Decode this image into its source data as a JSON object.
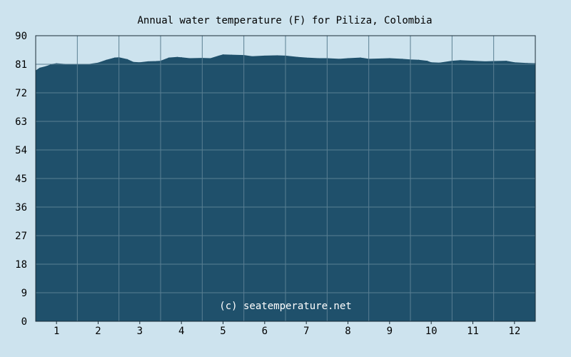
{
  "chart_data": {
    "type": "area",
    "title": "Annual water temperature (F) for Piliza, Colombia",
    "watermark": "(c) seatemperature.net",
    "xlabel": "",
    "ylabel": "",
    "ylim": [
      0,
      90
    ],
    "xlim": [
      0.5,
      12.5
    ],
    "y_ticks": [
      "0",
      "9",
      "18",
      "27",
      "36",
      "45",
      "54",
      "63",
      "72",
      "81",
      "90"
    ],
    "x_tick_labels": [
      "1",
      "2",
      "3",
      "4",
      "5",
      "6",
      "7",
      "8",
      "9",
      "10",
      "11",
      "12"
    ],
    "grid": true,
    "colors": {
      "background": "#cde3ee",
      "fill": "#1f506b",
      "grid": "#5a7f93",
      "axis": "#1a2d38"
    },
    "series": [
      {
        "x": [
          0.5,
          0.6,
          0.75,
          0.9,
          1.0,
          1.2,
          1.5,
          1.8,
          2.0,
          2.2,
          2.4,
          2.5,
          2.7,
          2.85,
          3.0,
          3.2,
          3.4,
          3.5,
          3.7,
          3.9,
          4.0,
          4.2,
          4.5,
          4.7,
          4.9,
          5.0,
          5.2,
          5.5,
          5.7,
          6.0,
          6.3,
          6.5,
          6.8,
          7.0,
          7.3,
          7.5,
          7.8,
          8.0,
          8.3,
          8.5,
          8.8,
          9.0,
          9.3,
          9.5,
          9.7,
          9.9,
          10.0,
          10.2,
          10.5,
          10.7,
          11.0,
          11.3,
          11.5,
          11.8,
          12.0,
          12.3,
          12.5
        ],
        "y": [
          78.9,
          79.8,
          80.3,
          81.0,
          81.2,
          81.0,
          80.8,
          81.0,
          81.4,
          82.3,
          83.0,
          83.1,
          82.5,
          81.6,
          81.5,
          81.8,
          81.9,
          82.0,
          83.0,
          83.2,
          83.1,
          82.8,
          82.9,
          82.8,
          83.6,
          84.0,
          83.9,
          83.8,
          83.4,
          83.6,
          83.7,
          83.6,
          83.2,
          83.0,
          82.8,
          82.8,
          82.6,
          82.8,
          83.0,
          82.6,
          82.7,
          82.8,
          82.6,
          82.4,
          82.3,
          82.0,
          81.5,
          81.4,
          82.0,
          82.2,
          82.0,
          81.8,
          81.9,
          82.0,
          81.5,
          81.3,
          81.2
        ]
      }
    ]
  }
}
